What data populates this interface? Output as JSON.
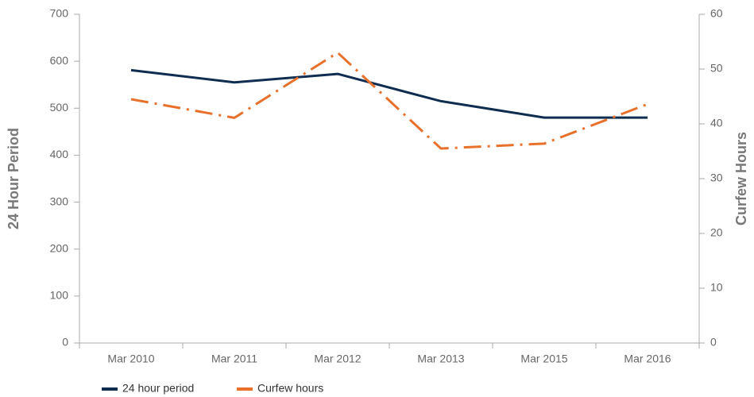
{
  "chart_data": {
    "type": "line",
    "categories": [
      "Mar 2010",
      "Mar 2011",
      "Mar 2012",
      "Mar 2013",
      "Mar 2015",
      "Mar 2016"
    ],
    "series": [
      {
        "name": "24 hour period",
        "color": "#0e2d51",
        "values": [
          581,
          555,
          573,
          515,
          480,
          480
        ]
      },
      {
        "name": "Curfew hours",
        "color": "#e8702a",
        "axis": "y2",
        "values": [
          44.5,
          41.1,
          53,
          35.5,
          36.4,
          43.6
        ]
      }
    ],
    "ylabel": "24 Hour Period",
    "y2label": "Curfew Hours",
    "ylim": [
      0,
      700
    ],
    "yticks": [
      0,
      100,
      200,
      300,
      400,
      500,
      600,
      700
    ],
    "y2lim": [
      0,
      60
    ],
    "y2ticks": [
      0,
      10,
      20,
      30,
      40,
      50,
      60
    ],
    "legend": "bottom-left"
  }
}
